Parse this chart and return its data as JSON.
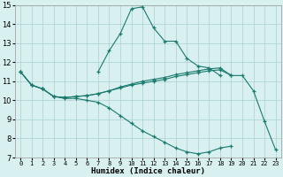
{
  "x": [
    0,
    1,
    2,
    3,
    4,
    5,
    6,
    7,
    8,
    9,
    10,
    11,
    12,
    13,
    14,
    15,
    16,
    17,
    18,
    19,
    20,
    21,
    22,
    23
  ],
  "line_arc": [
    null,
    null,
    null,
    null,
    null,
    null,
    null,
    11.5,
    12.6,
    13.5,
    14.8,
    14.9,
    13.8,
    13.1,
    13.1,
    12.2,
    11.8,
    11.7,
    11.3,
    null,
    null,
    null,
    null,
    null
  ],
  "line_top": [
    11.5,
    10.8,
    10.6,
    10.2,
    10.15,
    10.2,
    10.25,
    10.35,
    10.5,
    10.7,
    10.85,
    11.0,
    11.1,
    11.2,
    11.35,
    11.45,
    11.55,
    11.65,
    11.7,
    11.3,
    null,
    null,
    null,
    null
  ],
  "line_full": [
    11.5,
    10.8,
    10.6,
    10.2,
    10.15,
    10.2,
    10.25,
    10.35,
    10.5,
    10.65,
    10.8,
    10.9,
    11.0,
    11.1,
    11.25,
    11.35,
    11.45,
    11.55,
    11.6,
    11.3,
    11.3,
    10.5,
    8.9,
    7.4
  ],
  "line_bot": [
    11.5,
    10.8,
    10.6,
    10.2,
    10.1,
    10.1,
    10.0,
    9.9,
    9.6,
    9.2,
    8.8,
    8.4,
    8.1,
    7.8,
    7.5,
    7.3,
    7.2,
    7.3,
    7.5,
    7.6,
    null,
    null,
    null,
    null
  ],
  "color": "#1a7a6e",
  "bg_color": "#d8f0f0",
  "grid_color": "#aacfcf",
  "xlabel": "Humidex (Indice chaleur)",
  "xlim": [
    -0.5,
    23.5
  ],
  "ylim": [
    7,
    15
  ],
  "yticks": [
    7,
    8,
    9,
    10,
    11,
    12,
    13,
    14,
    15
  ],
  "xticks": [
    0,
    1,
    2,
    3,
    4,
    5,
    6,
    7,
    8,
    9,
    10,
    11,
    12,
    13,
    14,
    15,
    16,
    17,
    18,
    19,
    20,
    21,
    22,
    23
  ],
  "xtick_labels": [
    "0",
    "1",
    "2",
    "3",
    "4",
    "5",
    "6",
    "7",
    "8",
    "9",
    "10",
    "11",
    "12",
    "13",
    "14",
    "15",
    "16",
    "17",
    "18",
    "19",
    "20",
    "21",
    "22",
    "23"
  ]
}
